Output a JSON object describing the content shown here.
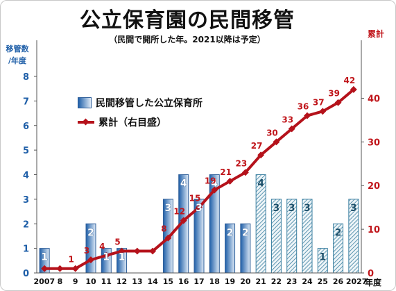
{
  "title": "公立保育園の民間移管",
  "subtitle": "（民間で開所した年。2021以降は予定）",
  "ylabel_left": [
    "移管数",
    "/年度"
  ],
  "ylabel_right": "累計",
  "xunit": "年度",
  "colors": {
    "bar_actual": "#1f5fa8",
    "bar_planned": "#3a7fa0",
    "line": "#b5121b",
    "left_axis": "#1f5fa8",
    "right_axis": "#c0161b"
  },
  "legend": {
    "bar": "民間移管した公立保育所",
    "line": "累計（右目盛）"
  },
  "chart_data": {
    "type": "bar+line",
    "categories": [
      "2007",
      "8",
      "9",
      "10",
      "11",
      "12",
      "13",
      "14",
      "15",
      "16",
      "17",
      "18",
      "19",
      "20",
      "21",
      "22",
      "23",
      "24",
      "25",
      "26",
      "2027"
    ],
    "bars": {
      "name": "民間移管した公立保育所",
      "values": [
        1,
        0,
        0,
        2,
        1,
        1,
        0,
        0,
        3,
        4,
        3,
        4,
        2,
        2,
        4,
        3,
        3,
        3,
        1,
        2,
        3
      ],
      "planned_from": "21",
      "label_shown": [
        true,
        false,
        false,
        true,
        true,
        true,
        false,
        false,
        true,
        true,
        true,
        true,
        true,
        true,
        true,
        true,
        true,
        true,
        true,
        true,
        true
      ],
      "axis": "left",
      "ylim": [
        0,
        8
      ],
      "yticks": [
        0,
        1,
        2,
        3,
        4,
        5,
        6,
        7,
        8
      ]
    },
    "line": {
      "name": "累計（右目盛）",
      "values": [
        1,
        1,
        1,
        3,
        4,
        5,
        5,
        5,
        8,
        12,
        15,
        19,
        21,
        23,
        27,
        30,
        33,
        36,
        37,
        39,
        42
      ],
      "label_shown": [
        false,
        false,
        true,
        true,
        true,
        true,
        false,
        false,
        true,
        true,
        true,
        true,
        true,
        true,
        true,
        true,
        true,
        true,
        true,
        true,
        true
      ],
      "axis": "right",
      "ylim": [
        0,
        45
      ],
      "yticks": [
        0,
        10,
        20,
        30,
        40
      ]
    },
    "legend_position": "top-left",
    "grid": false
  }
}
